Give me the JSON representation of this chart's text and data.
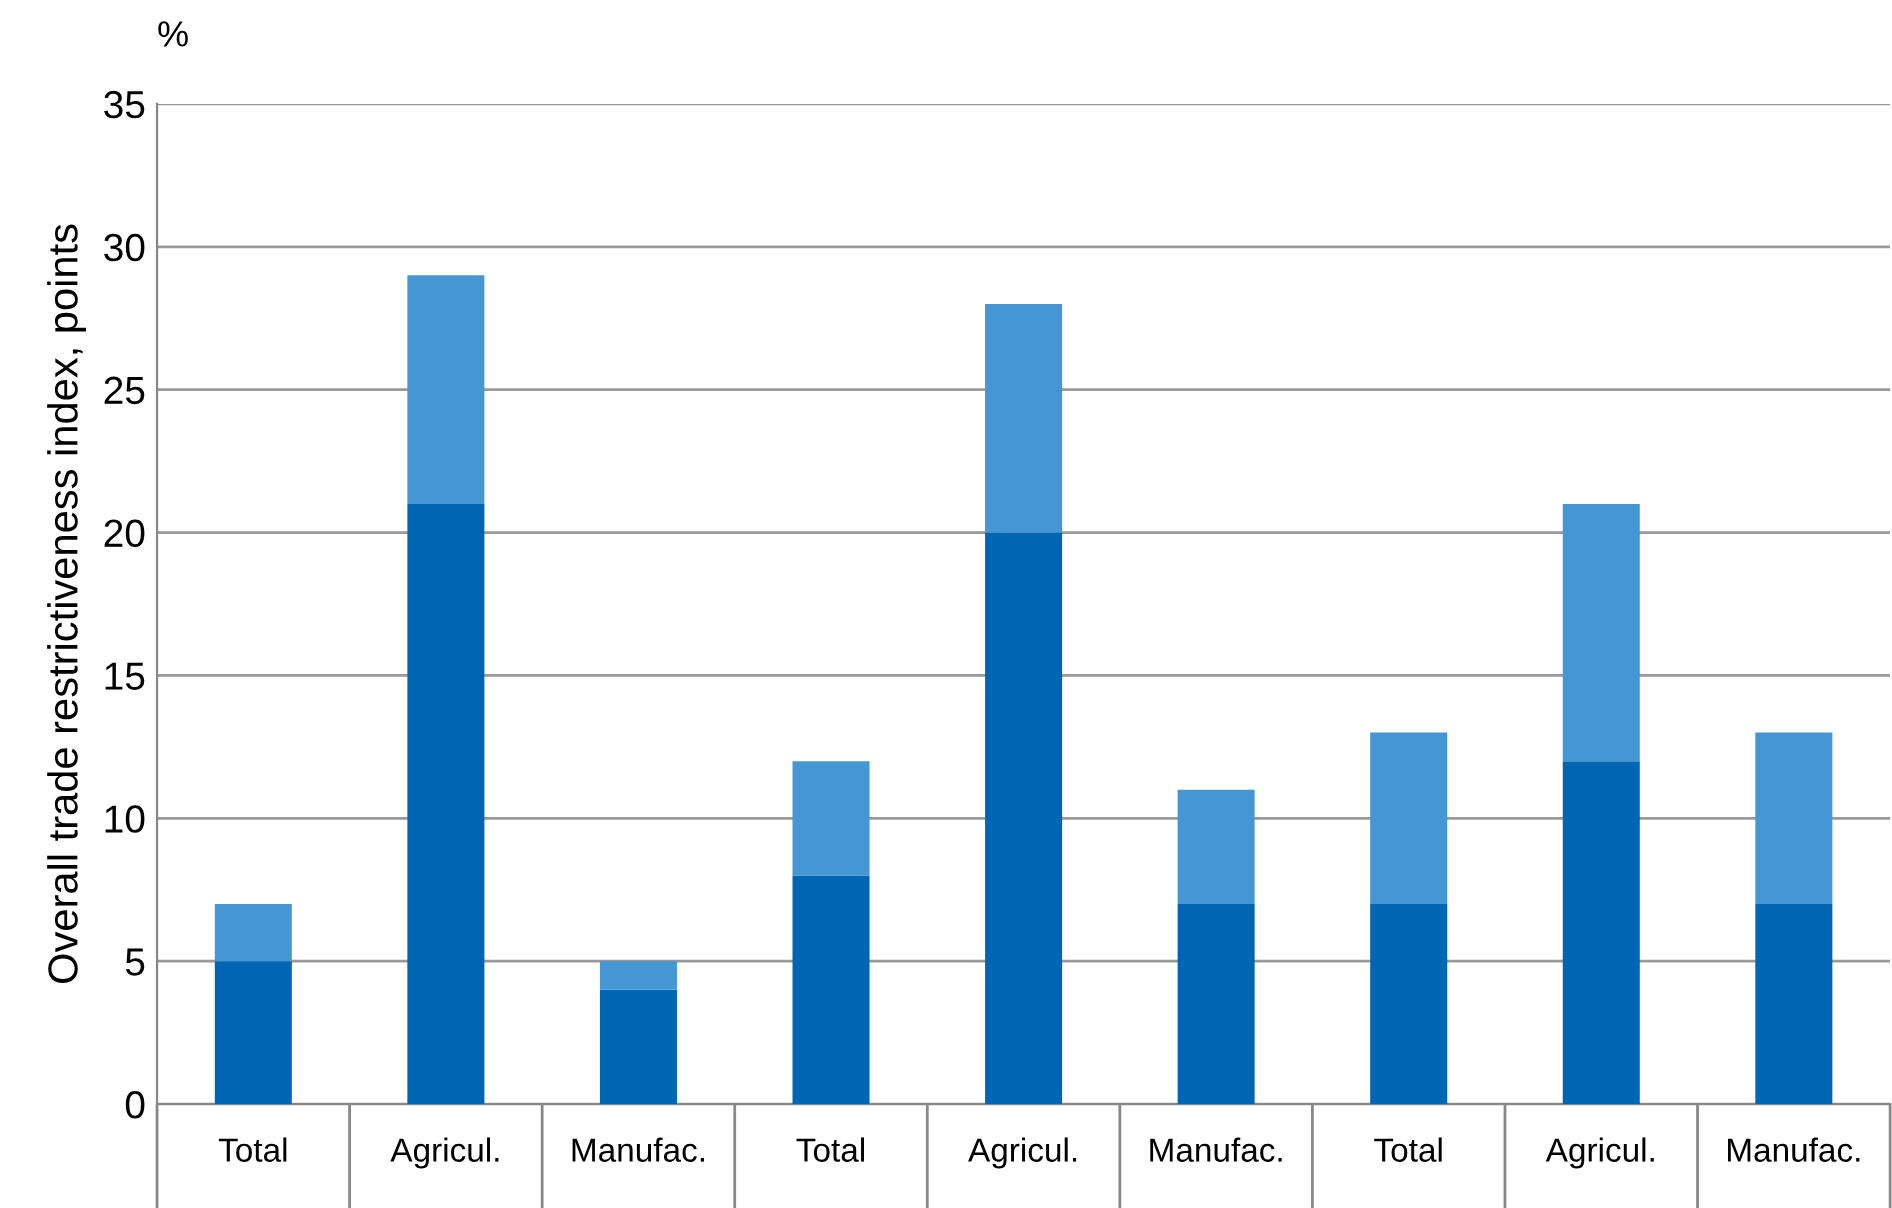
{
  "chart_data": {
    "type": "bar",
    "stacked": true,
    "ylabel": "Overall trade restrictiveness index, points",
    "annotations": [
      "%"
    ],
    "categories": [
      "Total",
      "Agricul.",
      "Manufac.",
      "Total",
      "Agricul.",
      "Manufac.",
      "Total",
      "Agricul.",
      "Manufac."
    ],
    "series": [
      {
        "color": "#0066b3",
        "values": [
          5,
          21,
          4,
          8,
          20,
          7,
          7,
          12,
          7
        ]
      },
      {
        "color": "#4596d4",
        "values": [
          2,
          8,
          1,
          4,
          8,
          4,
          6,
          9,
          6
        ]
      }
    ],
    "ylim": [
      0,
      35
    ],
    "yticks": [
      0,
      5,
      10,
      15,
      20,
      25,
      30,
      35
    ],
    "grid": "y"
  }
}
